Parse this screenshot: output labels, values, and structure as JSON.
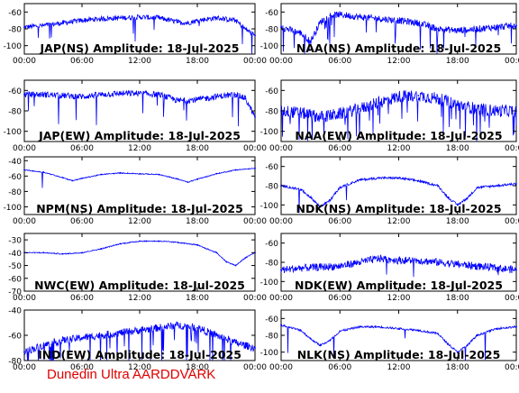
{
  "footer": {
    "credit": "Dunedin Ultra AARDDVARK"
  },
  "colors": {
    "trace": "#0000ff",
    "frame": "#000000",
    "background": "#ffffff",
    "credit": "#e00000"
  },
  "chart_data": [
    {
      "type": "line",
      "title": "JAP(NS) Amplitude: 18-Jul-2025",
      "xlabel": "",
      "ylabel": "",
      "xticks": [
        "00:00",
        "06:00",
        "12:00",
        "18:00",
        "00:00"
      ],
      "yticks": [
        -60,
        -80,
        -100
      ],
      "ylim": [
        -110,
        -50
      ],
      "series": [
        {
          "x": [
            0,
            2,
            4,
            6,
            8,
            10,
            12,
            14,
            16,
            17,
            18,
            20,
            22,
            23,
            24
          ],
          "y": [
            -78,
            -76,
            -73,
            -70,
            -68,
            -67,
            -66,
            -67,
            -72,
            -73,
            -70,
            -67,
            -70,
            -80,
            -88
          ]
        }
      ]
    },
    {
      "type": "line",
      "title": "NAA(NS) Amplitude: 18-Jul-2025",
      "xlabel": "",
      "ylabel": "",
      "xticks": [
        "00:00",
        "06:00",
        "12:00",
        "18:00",
        "00:00"
      ],
      "yticks": [
        -60,
        -80,
        -100
      ],
      "ylim": [
        -110,
        -50
      ],
      "series": [
        {
          "x": [
            0,
            2,
            3,
            4,
            5,
            6,
            8,
            10,
            12,
            14,
            16,
            18,
            20,
            22,
            24
          ],
          "y": [
            -78,
            -85,
            -95,
            -72,
            -64,
            -63,
            -66,
            -68,
            -70,
            -73,
            -80,
            -82,
            -80,
            -78,
            -76
          ]
        }
      ]
    },
    {
      "type": "line",
      "title": "JAP(EW) Amplitude: 18-Jul-2025",
      "xlabel": "",
      "ylabel": "",
      "xticks": [
        "00:00",
        "06:00",
        "12:00",
        "18:00",
        "00:00"
      ],
      "yticks": [
        -60,
        -80,
        -100
      ],
      "ylim": [
        -110,
        -50
      ],
      "series": [
        {
          "x": [
            0,
            2,
            4,
            6,
            8,
            10,
            12,
            14,
            16,
            18,
            20,
            22,
            23,
            24
          ],
          "y": [
            -64,
            -64,
            -65,
            -66,
            -64,
            -63,
            -63,
            -64,
            -70,
            -69,
            -66,
            -64,
            -68,
            -86
          ]
        }
      ]
    },
    {
      "type": "line",
      "title": "NAA(EW) Amplitude: 18-Jul-2025",
      "xlabel": "",
      "ylabel": "",
      "xticks": [
        "00:00",
        "06:00",
        "12:00",
        "18:00",
        "00:00"
      ],
      "yticks": [
        -60,
        -80,
        -100
      ],
      "ylim": [
        -110,
        -50
      ],
      "series": [
        {
          "x": [
            0,
            2,
            4,
            6,
            8,
            10,
            12,
            14,
            16,
            18,
            20,
            22,
            24
          ],
          "y": [
            -80,
            -82,
            -86,
            -83,
            -78,
            -72,
            -66,
            -65,
            -68,
            -74,
            -78,
            -80,
            -80
          ]
        }
      ]
    },
    {
      "type": "line",
      "title": "NPM(NS) Amplitude: 18-Jul-2025",
      "xlabel": "",
      "ylabel": "",
      "xticks": [
        "00:00",
        "06:00",
        "12:00",
        "18:00",
        "00:00"
      ],
      "yticks": [
        -40,
        -60,
        -80,
        -100
      ],
      "ylim": [
        -110,
        -35
      ],
      "series": [
        {
          "x": [
            0,
            2,
            4,
            5,
            6,
            8,
            10,
            12,
            14,
            16,
            17,
            18,
            20,
            22,
            24
          ],
          "y": [
            -52,
            -55,
            -62,
            -66,
            -63,
            -58,
            -56,
            -57,
            -58,
            -64,
            -68,
            -64,
            -57,
            -52,
            -50
          ]
        }
      ]
    },
    {
      "type": "line",
      "title": "NDK(NS) Amplitude: 18-Jul-2025",
      "xlabel": "",
      "ylabel": "",
      "xticks": [
        "00:00",
        "06:00",
        "12:00",
        "18:00",
        "00:00"
      ],
      "yticks": [
        -60,
        -80,
        -100
      ],
      "ylim": [
        -110,
        -50
      ],
      "series": [
        {
          "x": [
            0,
            2,
            3,
            4,
            5,
            6,
            8,
            10,
            12,
            14,
            16,
            17,
            18,
            19,
            20,
            22,
            24
          ],
          "y": [
            -80,
            -84,
            -92,
            -102,
            -95,
            -82,
            -74,
            -72,
            -72,
            -75,
            -80,
            -92,
            -100,
            -93,
            -82,
            -80,
            -78
          ]
        }
      ]
    },
    {
      "type": "line",
      "title": "NWC(EW) Amplitude: 18-Jul-2025",
      "xlabel": "",
      "ylabel": "",
      "xticks": [
        "00:00",
        "06:00",
        "12:00",
        "18:00",
        "00:00"
      ],
      "yticks": [
        -30,
        -40,
        -50,
        -60,
        -70
      ],
      "ylim": [
        -70,
        -25
      ],
      "series": [
        {
          "x": [
            0,
            2,
            4,
            6,
            8,
            10,
            12,
            14,
            16,
            18,
            20,
            21,
            22,
            23,
            24
          ],
          "y": [
            -40,
            -40,
            -41,
            -40,
            -37,
            -33,
            -31,
            -31,
            -32,
            -34,
            -40,
            -47,
            -50,
            -44,
            -40
          ]
        }
      ]
    },
    {
      "type": "line",
      "title": "NDK(EW) Amplitude: 18-Jul-2025",
      "xlabel": "",
      "ylabel": "",
      "xticks": [
        "00:00",
        "06:00",
        "12:00",
        "18:00",
        "00:00"
      ],
      "yticks": [
        -60,
        -80,
        -100
      ],
      "ylim": [
        -110,
        -50
      ],
      "series": [
        {
          "x": [
            0,
            2,
            4,
            6,
            8,
            10,
            12,
            14,
            16,
            18,
            20,
            22,
            24
          ],
          "y": [
            -88,
            -86,
            -85,
            -84,
            -80,
            -76,
            -78,
            -78,
            -80,
            -82,
            -84,
            -86,
            -88
          ]
        }
      ]
    },
    {
      "type": "line",
      "title": "IND(EW) Amplitude: 18-Jul-2025",
      "xlabel": "",
      "ylabel": "",
      "xticks": [
        "00:00",
        "06:00",
        "12:00",
        "18:00",
        "00:00"
      ],
      "yticks": [
        -40,
        -60,
        -80
      ],
      "ylim": [
        -80,
        -40
      ],
      "series": [
        {
          "x": [
            0,
            2,
            4,
            6,
            8,
            10,
            12,
            14,
            16,
            18,
            20,
            22,
            24
          ],
          "y": [
            -73,
            -68,
            -64,
            -62,
            -60,
            -58,
            -56,
            -54,
            -52,
            -54,
            -60,
            -66,
            -70
          ]
        }
      ]
    },
    {
      "type": "line",
      "title": "NLK(NS) Amplitude: 18-Jul-2025",
      "xlabel": "",
      "ylabel": "",
      "xticks": [
        "00:00",
        "06:00",
        "12:00",
        "18:00",
        "00:00"
      ],
      "yticks": [
        -60,
        -80,
        -100
      ],
      "ylim": [
        -110,
        -50
      ],
      "series": [
        {
          "x": [
            0,
            2,
            3,
            4,
            5,
            6,
            8,
            10,
            12,
            14,
            16,
            17,
            18,
            19,
            20,
            22,
            24
          ],
          "y": [
            -68,
            -74,
            -84,
            -92,
            -86,
            -75,
            -70,
            -70,
            -72,
            -74,
            -78,
            -90,
            -100,
            -92,
            -80,
            -72,
            -70
          ]
        }
      ]
    }
  ]
}
